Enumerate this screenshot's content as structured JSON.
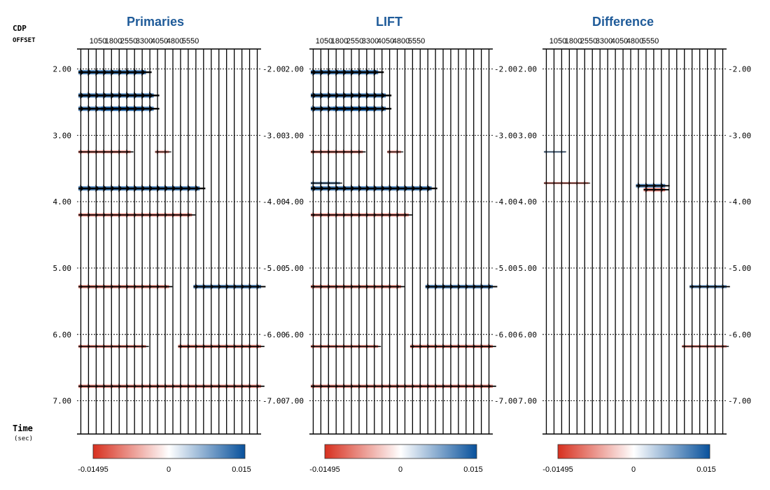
{
  "axis_labels": {
    "cdp": "CDP",
    "offset": "OFFSET",
    "time": "Time",
    "time_unit": "(sec)"
  },
  "colors": {
    "negative": "#d7301f",
    "zero": "#ffffff",
    "positive": "#08519c",
    "title": "#1f5b99",
    "trace": "#000000"
  },
  "chart_data": [
    {
      "type": "heatmap",
      "title": "Primaries",
      "offset_ticks": [
        "1050",
        "1800",
        "2550",
        "3300",
        "4050",
        "4800",
        "5550"
      ],
      "time_ticks": [
        "2.00",
        "3.00",
        "4.00",
        "5.00",
        "6.00",
        "7.00"
      ],
      "time_values": [
        2.0,
        3.0,
        4.0,
        5.0,
        6.0,
        7.0
      ],
      "ylim": [
        1.7,
        7.5
      ],
      "trace_count": 24,
      "colorbar": {
        "min_label": "-0.01495",
        "mid_label": "0",
        "max_label": "0.015",
        "min": -0.01495,
        "max": 0.015
      },
      "events": [
        {
          "t": 2.05,
          "from": 0,
          "to": 9,
          "amp": 1.0,
          "pol": "pos"
        },
        {
          "t": 2.4,
          "from": 0,
          "to": 10,
          "amp": 1.0,
          "pol": "pos"
        },
        {
          "t": 2.6,
          "from": 0,
          "to": 10,
          "amp": 1.0,
          "pol": "mix"
        },
        {
          "t": 3.25,
          "from": 0,
          "to": 7,
          "amp": 0.5,
          "pol": "neg"
        },
        {
          "t": 3.25,
          "from": 10,
          "to": 12,
          "amp": 0.4,
          "pol": "neg"
        },
        {
          "t": 3.8,
          "from": 0,
          "to": 16,
          "amp": 1.0,
          "pol": "pos"
        },
        {
          "t": 4.2,
          "from": 0,
          "to": 15,
          "amp": 0.6,
          "pol": "neg"
        },
        {
          "t": 5.28,
          "from": 0,
          "to": 12,
          "amp": 0.6,
          "pol": "neg"
        },
        {
          "t": 5.28,
          "from": 15,
          "to": 24,
          "amp": 0.8,
          "pol": "pos"
        },
        {
          "t": 6.18,
          "from": 0,
          "to": 9,
          "amp": 0.5,
          "pol": "neg"
        },
        {
          "t": 6.18,
          "from": 13,
          "to": 24,
          "amp": 0.6,
          "pol": "neg"
        },
        {
          "t": 6.78,
          "from": 0,
          "to": 24,
          "amp": 0.6,
          "pol": "neg"
        }
      ]
    },
    {
      "type": "heatmap",
      "title": "LIFT",
      "offset_ticks": [
        "1050",
        "1800",
        "2550",
        "3300",
        "4050",
        "4800",
        "5550"
      ],
      "time_ticks": [
        "2.00",
        "3.00",
        "4.00",
        "5.00",
        "6.00",
        "7.00"
      ],
      "time_values": [
        2.0,
        3.0,
        4.0,
        5.0,
        6.0,
        7.0
      ],
      "ylim": [
        1.7,
        7.5
      ],
      "trace_count": 24,
      "colorbar": {
        "min_label": "-0.01495",
        "mid_label": "0",
        "max_label": "0.015",
        "min": -0.01495,
        "max": 0.015
      },
      "events": [
        {
          "t": 2.05,
          "from": 0,
          "to": 9,
          "amp": 1.0,
          "pol": "pos"
        },
        {
          "t": 2.4,
          "from": 0,
          "to": 10,
          "amp": 1.0,
          "pol": "pos"
        },
        {
          "t": 2.6,
          "from": 0,
          "to": 10,
          "amp": 1.0,
          "pol": "mix"
        },
        {
          "t": 3.25,
          "from": 0,
          "to": 7,
          "amp": 0.5,
          "pol": "neg"
        },
        {
          "t": 3.25,
          "from": 10,
          "to": 12,
          "amp": 0.4,
          "pol": "neg"
        },
        {
          "t": 3.72,
          "from": 0,
          "to": 4,
          "amp": 0.4,
          "pol": "pos"
        },
        {
          "t": 3.8,
          "from": 0,
          "to": 16,
          "amp": 1.0,
          "pol": "pos"
        },
        {
          "t": 4.2,
          "from": 0,
          "to": 13,
          "amp": 0.6,
          "pol": "neg"
        },
        {
          "t": 5.28,
          "from": 0,
          "to": 12,
          "amp": 0.6,
          "pol": "neg"
        },
        {
          "t": 5.28,
          "from": 15,
          "to": 24,
          "amp": 0.8,
          "pol": "pos"
        },
        {
          "t": 6.18,
          "from": 0,
          "to": 9,
          "amp": 0.5,
          "pol": "neg"
        },
        {
          "t": 6.18,
          "from": 13,
          "to": 24,
          "amp": 0.6,
          "pol": "neg"
        },
        {
          "t": 6.78,
          "from": 0,
          "to": 24,
          "amp": 0.6,
          "pol": "neg"
        }
      ]
    },
    {
      "type": "heatmap",
      "title": "Difference",
      "offset_ticks": [
        "1050",
        "1800",
        "2550",
        "3300",
        "4050",
        "4800",
        "5550"
      ],
      "time_ticks": [
        "2.00",
        "3.00",
        "4.00",
        "5.00",
        "6.00",
        "7.00"
      ],
      "time_values": [
        2.0,
        3.0,
        4.0,
        5.0,
        6.0,
        7.0
      ],
      "ylim": [
        1.7,
        7.5
      ],
      "trace_count": 24,
      "colorbar": {
        "min_label": "-0.01495",
        "mid_label": "0",
        "max_label": "0.015",
        "min": -0.01495,
        "max": 0.015
      },
      "events": [
        {
          "t": 3.25,
          "from": 0,
          "to": 3,
          "amp": 0.15,
          "pol": "pos"
        },
        {
          "t": 3.72,
          "from": 0,
          "to": 6,
          "amp": 0.3,
          "pol": "neg"
        },
        {
          "t": 3.76,
          "from": 12,
          "to": 16,
          "amp": 0.8,
          "pol": "pos"
        },
        {
          "t": 3.82,
          "from": 13,
          "to": 16,
          "amp": 0.7,
          "pol": "neg"
        },
        {
          "t": 5.28,
          "from": 19,
          "to": 24,
          "amp": 0.6,
          "pol": "pos"
        },
        {
          "t": 6.18,
          "from": 18,
          "to": 24,
          "amp": 0.4,
          "pol": "neg"
        }
      ]
    }
  ]
}
